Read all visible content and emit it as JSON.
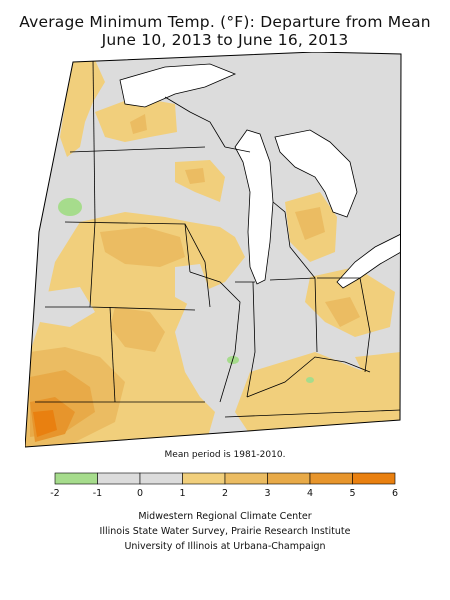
{
  "title_line1": "Average Minimum Temp. (°F): Departure from Mean",
  "title_line2": "June 10, 2013 to June 16, 2013",
  "mean_period_note": "Mean period is 1981-2010.",
  "legend": {
    "ticks": [
      "-2",
      "-1",
      "0",
      "1",
      "2",
      "3",
      "4",
      "5",
      "6"
    ],
    "bins": [
      {
        "range": [
          -2,
          -1
        ],
        "color": "#a6dc8c"
      },
      {
        "range": [
          -1,
          0
        ],
        "color": "#dcdcdc"
      },
      {
        "range": [
          0,
          1
        ],
        "color": "#dcdcdc"
      },
      {
        "range": [
          1,
          2
        ],
        "color": "#f1cf7c"
      },
      {
        "range": [
          2,
          3
        ],
        "color": "#ebbc62"
      },
      {
        "range": [
          3,
          4
        ],
        "color": "#e8aa48"
      },
      {
        "range": [
          4,
          5
        ],
        "color": "#e7952c"
      },
      {
        "range": [
          5,
          6
        ],
        "color": "#e98010"
      }
    ]
  },
  "credits": [
    "Midwestern Regional Climate Center",
    "Illinois State Water Survey, Prairie Research Institute",
    "University of Illinois at Urbana-Champaign"
  ],
  "colors": {
    "neutral": "#dcdcdc",
    "warm1": "#f1cf7c",
    "warm2": "#ebbc62",
    "warm3": "#e8aa48",
    "warm4": "#e7952c",
    "warm5": "#e98010",
    "cool": "#a6dc8c",
    "water": "#ffffff",
    "border": "#000000"
  }
}
